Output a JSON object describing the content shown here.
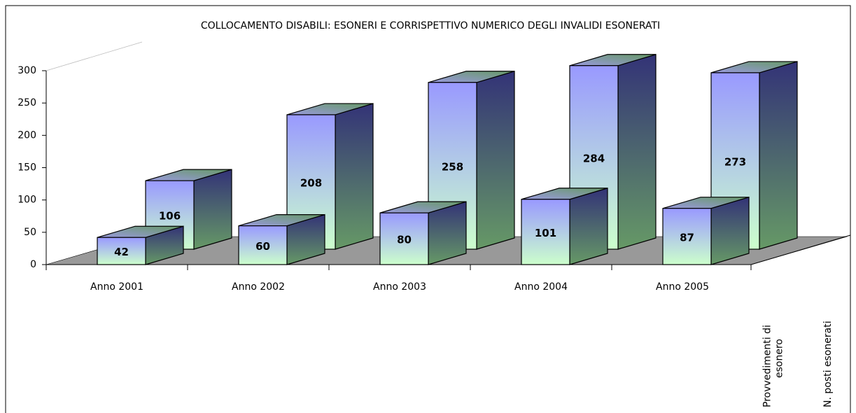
{
  "chart_data": {
    "type": "bar3d",
    "title": "COLLOCAMENTO DISABILI: ESONERI E CORRISPETTIVO NUMERICO DEGLI INVALIDI ESONERATI",
    "categories": [
      "Anno 2001",
      "Anno 2002",
      "Anno 2003",
      "Anno 2004",
      "Anno 2005"
    ],
    "series": [
      {
        "name": "Provvedimenti di esonero",
        "color": "#9999ff",
        "values": [
          42,
          60,
          80,
          101,
          87
        ]
      },
      {
        "name": "N. posti esonerati",
        "color": "#9999ff",
        "values": [
          106,
          208,
          258,
          284,
          273
        ]
      }
    ],
    "ylim": [
      0,
      300
    ],
    "yticks": [
      0,
      50,
      100,
      150,
      200,
      250,
      300
    ],
    "grid": false
  }
}
